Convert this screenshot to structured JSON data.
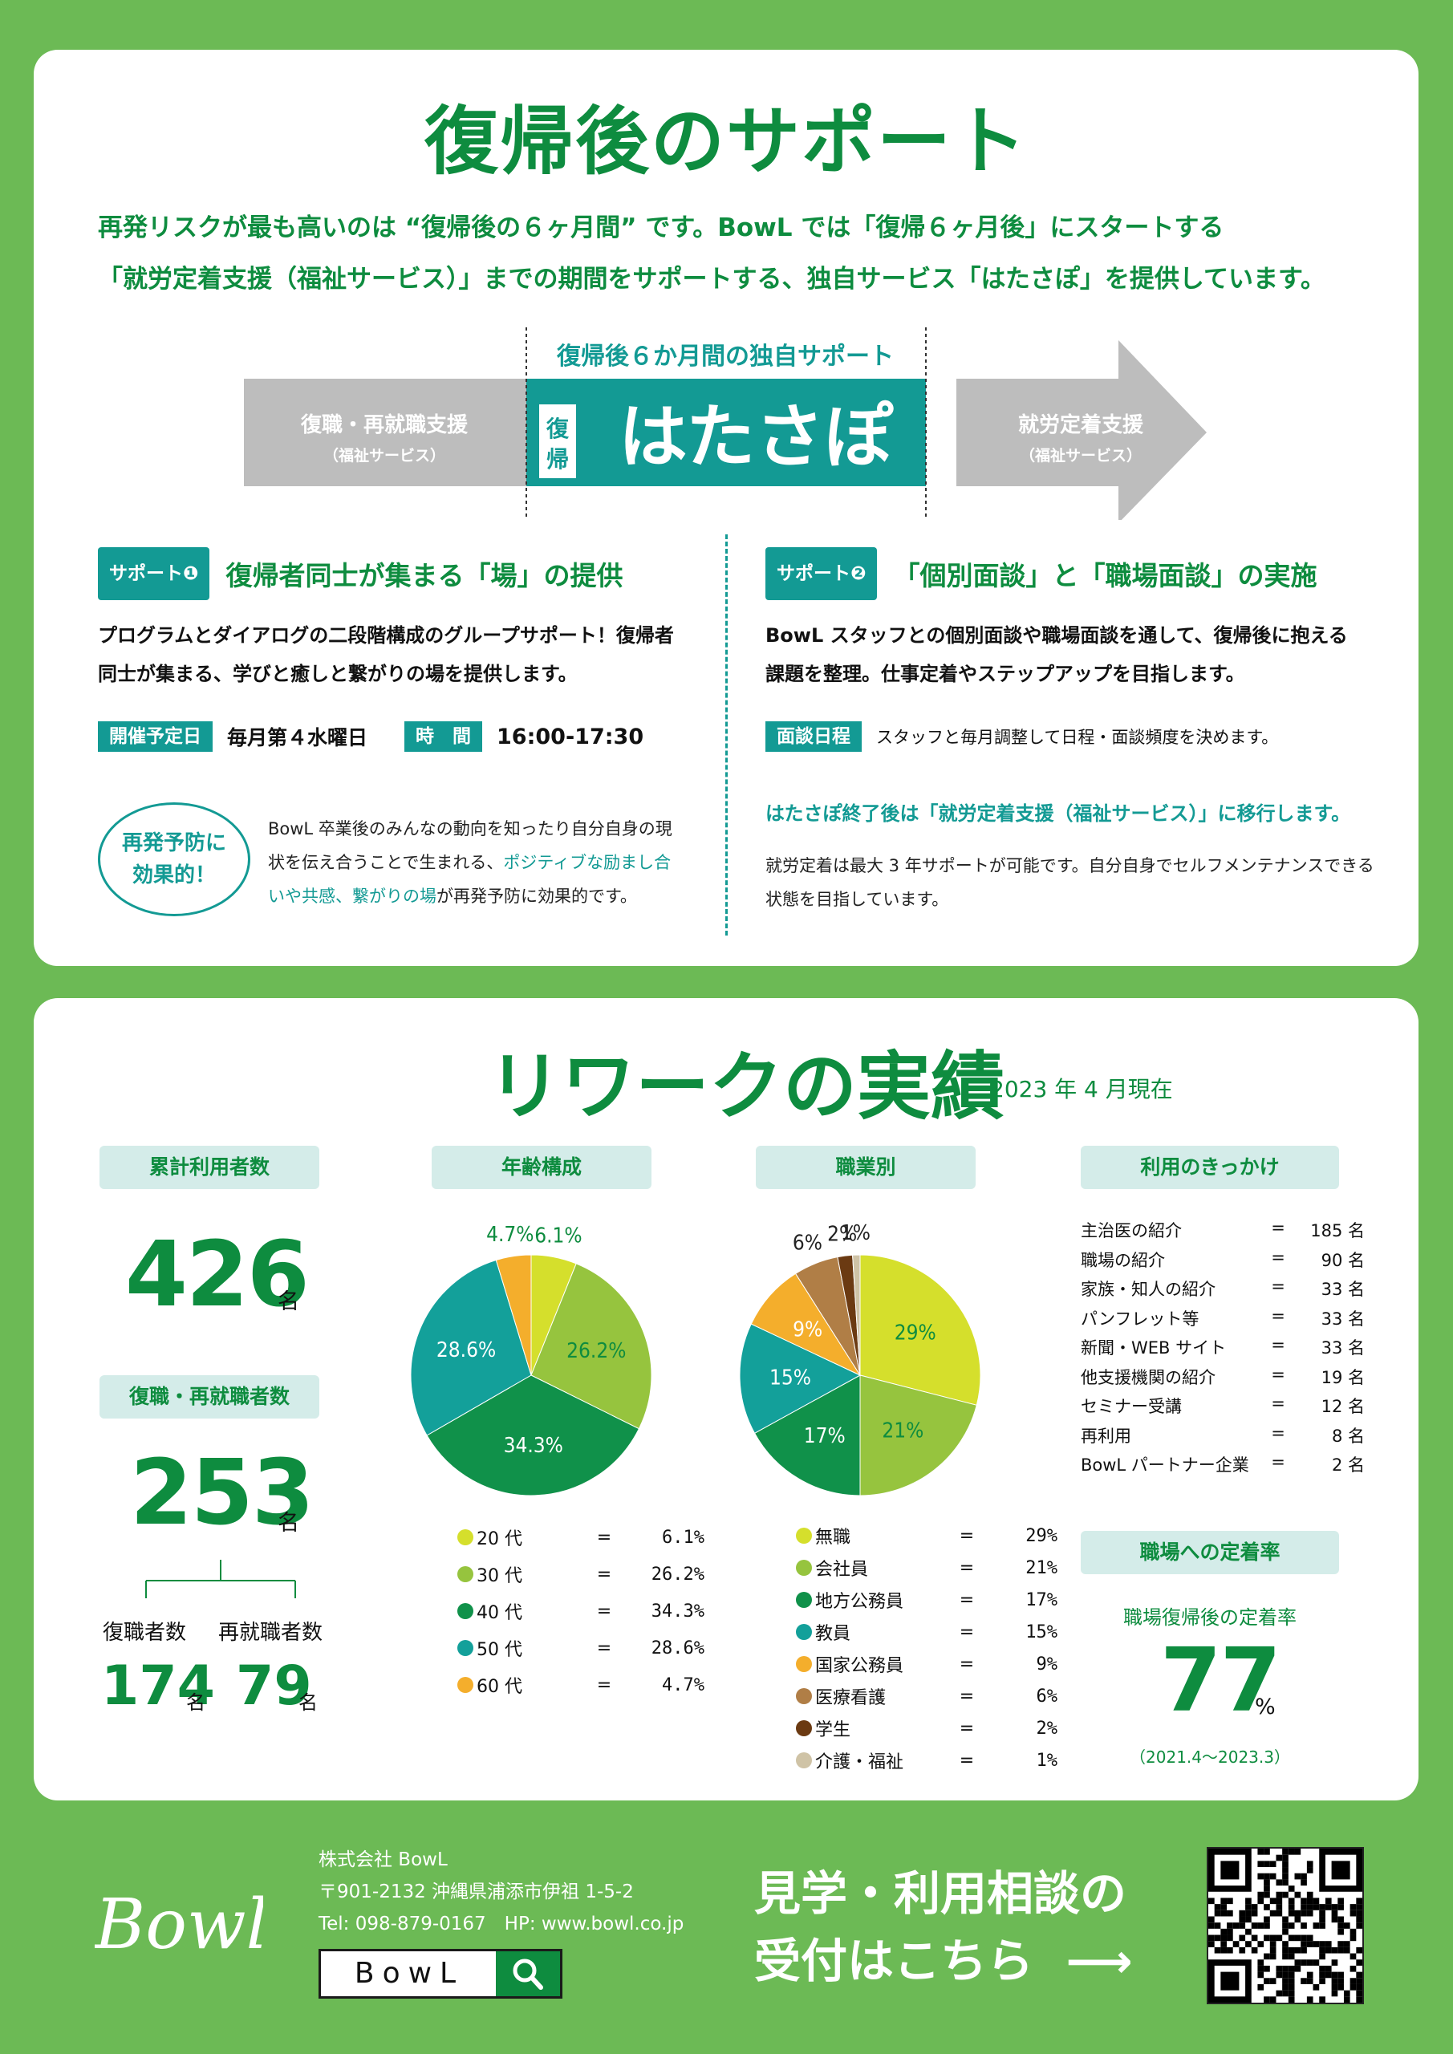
{
  "colors": {
    "green": "#0e8c3f",
    "teal": "#139a94",
    "bg": "#6cba55",
    "gray": "#bdbdbd"
  },
  "support": {
    "title": "復帰後のサポート",
    "intro_line1": "再発リスクが最も高いのは “復帰後の６ヶ月間” です。BowL では「復帰６ヶ月後」にスタートする",
    "intro_line2": "「就労定着支援（福祉サービス）」までの期間をサポートする、独自サービス「はたさぽ」を提供しています。",
    "diagram": {
      "caption": "復帰後６か月間の独自サポート",
      "left_label": "復職・再就職支援",
      "left_sub": "（福祉サービス）",
      "fukki": "復帰",
      "fukki_1": "復",
      "fukki_2": "帰",
      "center": "はたさぽ",
      "right_label": "就労定着支援",
      "right_sub": "（福祉サービス）"
    },
    "s1": {
      "badge": "サポート❶",
      "title": "復帰者同士が集まる「場」の提供",
      "body": "プログラムとダイアログの二段階構成のグループサポート！復帰者同士が集まる、学びと癒しと繋がりの場を提供します。",
      "schedule_tag": "開催予定日",
      "schedule_val": "毎月第４水曜日",
      "time_tag": "時　間",
      "time_val": "16:00-17:30",
      "effect_label_1": "再発予防に",
      "effect_label_2": "効果的！",
      "effect_text_a": "BowL 卒業後のみんなの動向を知ったり自分自身の現状を伝え合うことで生まれる、",
      "effect_text_hl": "ポジティブな励まし合いや共感、繋がりの場",
      "effect_text_b": "が再発予防に効果的です。"
    },
    "s2": {
      "badge": "サポート❷",
      "title": "「個別面談」と「職場面談」の実施",
      "body": "BowL スタッフとの個別面談や職場面談を通して、復帰後に抱える課題を整理。仕事定着やステップアップを目指します。",
      "schedule_tag": "面談日程",
      "schedule_val": "スタッフと毎月調整して日程・面談頻度を決めます。",
      "after_note": "はたさぽ終了後は「就労定着支援（福祉サービス）」に移行します。",
      "after_desc": "就労定着は最大 3 年サポートが可能です。自分自身でセルフメンテナンスできる状態を目指しています。"
    }
  },
  "results": {
    "title": "リワークの実績",
    "date": "2023 年 4 月現在",
    "total_label": "累計利用者数",
    "total_value": "426",
    "total_unit": "名",
    "reemp_label": "復職・再就職者数",
    "reemp_value": "253",
    "reemp_unit": "名",
    "return_label": "復職者数",
    "return_value": "174",
    "return_unit": "名",
    "newjob_label": "再就職者数",
    "newjob_value": "79",
    "newjob_unit": "名",
    "age_label": "年齢構成",
    "job_label": "職業別",
    "reason_label": "利用のきっかけ",
    "retention_label": "職場への定着率",
    "retention_sub": "職場復帰後の定着率",
    "retention_value": "77",
    "retention_unit": "%",
    "retention_period": "（2021.4～2023.3）",
    "reasons": [
      {
        "name": "主治医の紹介",
        "value": "185 名"
      },
      {
        "name": "職場の紹介",
        "value": "90 名"
      },
      {
        "name": "家族・知人の紹介",
        "value": "33 名"
      },
      {
        "name": "パンフレット等",
        "value": "33 名"
      },
      {
        "name": "新聞・WEB サイト",
        "value": "33 名"
      },
      {
        "name": "他支援機関の紹介",
        "value": "19 名"
      },
      {
        "name": "セミナー受講",
        "value": "12 名"
      },
      {
        "name": "再利用",
        "value": "8 名"
      },
      {
        "name": "BowL パートナー企業",
        "value": "2 名"
      }
    ],
    "eq": "="
  },
  "chart_data": [
    {
      "type": "pie",
      "title": "年齢構成",
      "categories": [
        "20 代",
        "30 代",
        "40 代",
        "50 代",
        "60 代"
      ],
      "values": [
        6.1,
        26.2,
        34.3,
        28.6,
        4.7
      ],
      "labels": [
        "6.1%",
        "26.2%",
        "34.3%",
        "28.6%",
        "4.7%"
      ],
      "colors": [
        "#d5df2c",
        "#96c43e",
        "#10914a",
        "#13a09a",
        "#f4ae2c"
      ],
      "legend": "bottom"
    },
    {
      "type": "pie",
      "title": "職業別",
      "categories": [
        "無職",
        "会社員",
        "地方公務員",
        "教員",
        "国家公務員",
        "医療看護",
        "学生",
        "介護・福祉"
      ],
      "values": [
        29,
        21,
        17,
        15,
        9,
        6,
        2,
        1
      ],
      "labels": [
        "29%",
        "21%",
        "17%",
        "15%",
        "9%",
        "6%",
        "2%",
        "1%"
      ],
      "colors": [
        "#d5df2c",
        "#96c43e",
        "#10914a",
        "#13a09a",
        "#f4ae2c",
        "#b07e46",
        "#6b3a12",
        "#cfc3a6"
      ],
      "legend": "bottom"
    }
  ],
  "footer": {
    "company": "株式会社 BowL",
    "address": "〒901-2132 沖縄県浦添市伊祖 1-5-2",
    "contact": "Tel: 098-879-0167　HP: www.bowl.co.jp",
    "search_text": "BowL",
    "logo_text": "Bowl",
    "cta_line1": "見学・利用相談の",
    "cta_line2": "受付はこちら",
    "cta_arrow": "⟶",
    "icons": {
      "search": "search-icon",
      "qr": "qr-code",
      "arrow": "arrow-right-icon"
    }
  }
}
